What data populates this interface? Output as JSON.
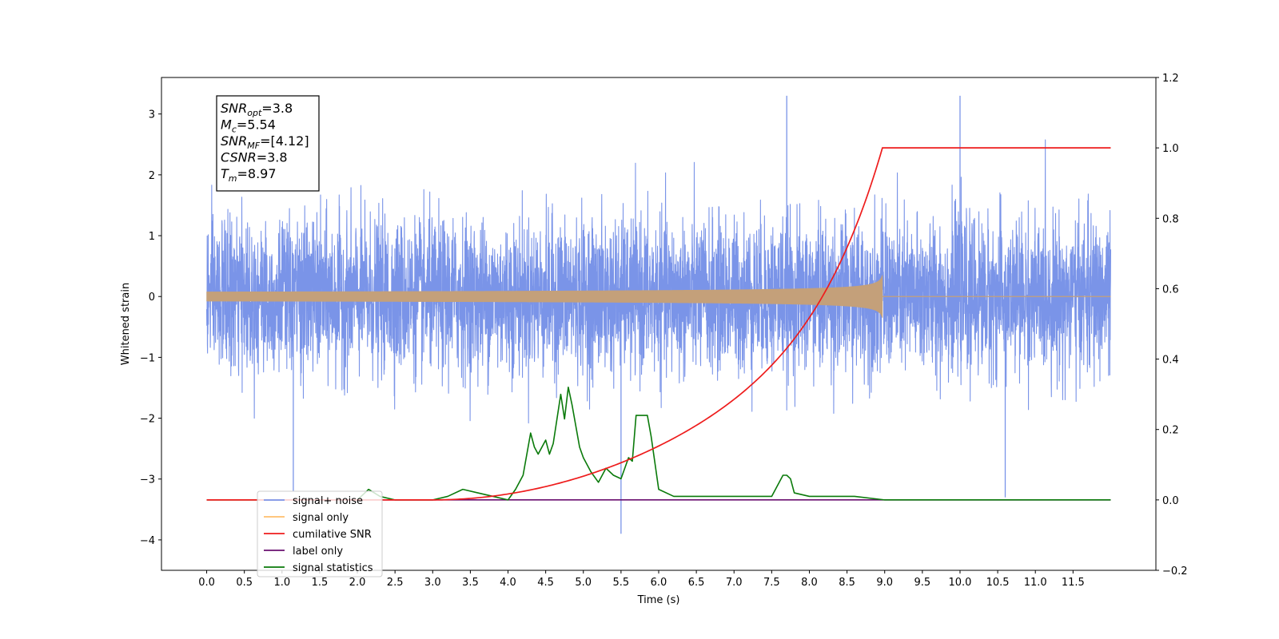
{
  "chart_data": {
    "type": "line",
    "xlabel": "Time (s)",
    "ylabel": "Whitened strain",
    "y2label": "",
    "xlim": [
      -0.6,
      12.6
    ],
    "ylim": [
      -4.5,
      3.6
    ],
    "y2lim": [
      -0.2,
      1.2
    ],
    "x_ticks": [
      "0.0",
      "0.5",
      "1.0",
      "1.5",
      "2.0",
      "2.5",
      "3.0",
      "3.5",
      "4.0",
      "4.5",
      "5.0",
      "5.5",
      "6.0",
      "6.5",
      "7.0",
      "7.5",
      "8.0",
      "8.5",
      "9.0",
      "9.5",
      "10.0",
      "10.5",
      "11.0",
      "11.5"
    ],
    "y_ticks": [
      "3",
      "2",
      "1",
      "0",
      "−1",
      "−2",
      "−3",
      "−4"
    ],
    "y_tick_values": [
      3,
      2,
      1,
      0,
      -1,
      -2,
      -3,
      -4
    ],
    "y2_ticks": [
      "1.2",
      "1.0",
      "0.8",
      "0.6",
      "0.4",
      "0.2",
      "0.0",
      "−0.2"
    ],
    "y2_tick_values": [
      1.2,
      1.0,
      0.8,
      0.6,
      0.4,
      0.2,
      0.0,
      -0.2
    ],
    "grid": false,
    "legend_position": "bottom-left",
    "annotation_box": [
      {
        "sym": "SNR",
        "sub": "opt",
        "val": "=3.8"
      },
      {
        "sym": "M",
        "sub": "c",
        "val": "=5.54"
      },
      {
        "sym": "SNR",
        "sub": "MF",
        "val": "=[4.12]"
      },
      {
        "sym": "CSNR",
        "sub": "",
        "val": "=3.8"
      },
      {
        "sym": "T",
        "sub": "m",
        "val": "=8.97"
      }
    ],
    "series": [
      {
        "name": "signal+ noise",
        "axis": "left",
        "color": "#7a94e8",
        "x_range": [
          0.0,
          12.0
        ],
        "sigma": 0.75,
        "notable_values": [
          {
            "x": 5.5,
            "y": -3.9
          },
          {
            "x": 1.15,
            "y": -3.2
          },
          {
            "x": 7.7,
            "y": 3.3
          },
          {
            "x": 10.0,
            "y": 3.3
          },
          {
            "x": 10.6,
            "y": -3.3
          }
        ]
      },
      {
        "name": "signal only",
        "axis": "left",
        "color": "#ffbe6b",
        "x_range": [
          0.0,
          12.0
        ],
        "merger_time": 8.97,
        "peak_amplitude": 0.35
      },
      {
        "name": "cumilative SNR",
        "axis": "right",
        "color": "#ee1c1c",
        "x": [
          0.0,
          3.0,
          3.5,
          4.0,
          4.5,
          5.0,
          5.5,
          6.0,
          6.5,
          7.0,
          7.5,
          8.0,
          8.5,
          8.9,
          8.97,
          12.0
        ],
        "y": [
          0.0,
          0.0,
          0.02,
          0.06,
          0.12,
          0.19,
          0.25,
          0.31,
          0.38,
          0.45,
          0.54,
          0.64,
          0.78,
          0.93,
          1.0,
          1.0
        ]
      },
      {
        "name": "label only",
        "axis": "right",
        "color": "#6a0f6f",
        "x": [
          2.0,
          12.0
        ],
        "y": [
          0.0,
          0.0
        ]
      },
      {
        "name": "signal statistics",
        "axis": "right",
        "color": "#0a7a0a",
        "x": [
          0.0,
          2.0,
          2.1,
          2.15,
          2.3,
          2.5,
          3.0,
          3.2,
          3.4,
          3.6,
          3.8,
          4.0,
          4.1,
          4.2,
          4.3,
          4.35,
          4.4,
          4.5,
          4.55,
          4.6,
          4.7,
          4.75,
          4.8,
          4.85,
          4.95,
          5.0,
          5.1,
          5.2,
          5.3,
          5.4,
          5.5,
          5.6,
          5.65,
          5.7,
          5.75,
          5.85,
          5.9,
          6.0,
          6.2,
          6.5,
          7.0,
          7.5,
          7.65,
          7.7,
          7.75,
          7.8,
          8.0,
          8.5,
          8.6,
          9.0,
          12.0
        ],
        "y": [
          0.0,
          0.0,
          0.02,
          0.03,
          0.01,
          0.0,
          0.0,
          0.01,
          0.03,
          0.02,
          0.01,
          0.0,
          0.03,
          0.07,
          0.19,
          0.15,
          0.13,
          0.17,
          0.13,
          0.16,
          0.3,
          0.23,
          0.32,
          0.27,
          0.15,
          0.12,
          0.08,
          0.05,
          0.09,
          0.07,
          0.06,
          0.12,
          0.11,
          0.24,
          0.24,
          0.24,
          0.18,
          0.03,
          0.01,
          0.01,
          0.01,
          0.01,
          0.07,
          0.07,
          0.06,
          0.02,
          0.01,
          0.01,
          0.01,
          0.0,
          0.0
        ]
      }
    ]
  },
  "colors": {
    "noise": "#7a94e8",
    "signal": "#ffbe6b",
    "signal_overlay": "#c4a07a",
    "cumulative": "#ee1c1c",
    "label": "#6a0f6f",
    "stats": "#0a7a0a"
  }
}
